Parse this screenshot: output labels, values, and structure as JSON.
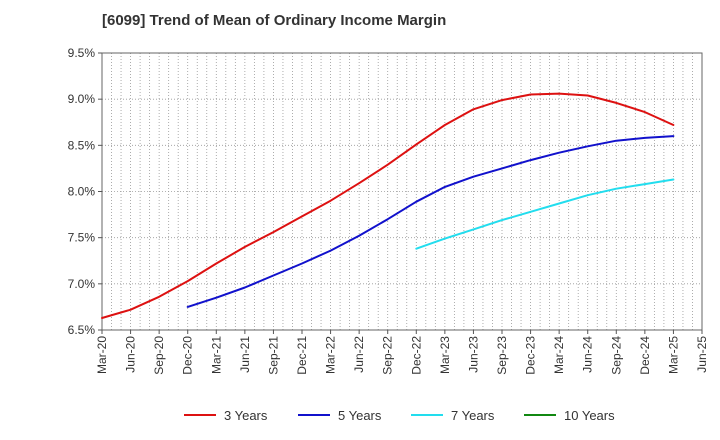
{
  "title": "[6099]  Trend of Mean of Ordinary Income Margin",
  "chart_data": {
    "type": "line",
    "title": "[6099]  Trend of Mean of Ordinary Income Margin",
    "xlabel": "",
    "ylabel": "",
    "x": [
      "Mar-20",
      "Jun-20",
      "Sep-20",
      "Dec-20",
      "Mar-21",
      "Jun-21",
      "Sep-21",
      "Dec-21",
      "Mar-22",
      "Jun-22",
      "Sep-22",
      "Dec-22",
      "Mar-23",
      "Jun-23",
      "Sep-23",
      "Dec-23",
      "Mar-24",
      "Jun-24",
      "Sep-24",
      "Dec-24",
      "Mar-25",
      "Jun-25"
    ],
    "ylim": [
      6.5,
      9.5
    ],
    "yticks": [
      6.5,
      7.0,
      7.5,
      8.0,
      8.5,
      9.0,
      9.5
    ],
    "ytick_labels": [
      "6.5%",
      "7.0%",
      "7.5%",
      "8.0%",
      "8.5%",
      "9.0%",
      "9.5%"
    ],
    "grid": true,
    "legend_position": "bottom",
    "series": [
      {
        "name": "3 Years",
        "color": "#dd1111",
        "values": [
          6.63,
          6.72,
          6.86,
          7.03,
          7.22,
          7.4,
          7.56,
          7.73,
          7.9,
          8.09,
          8.29,
          8.51,
          8.72,
          8.89,
          8.99,
          9.05,
          9.06,
          9.04,
          8.96,
          8.86,
          8.72,
          null
        ]
      },
      {
        "name": "5 Years",
        "color": "#1111cc",
        "values": [
          null,
          null,
          null,
          6.75,
          6.85,
          6.96,
          7.09,
          7.22,
          7.36,
          7.52,
          7.7,
          7.89,
          8.05,
          8.16,
          8.25,
          8.34,
          8.42,
          8.49,
          8.55,
          8.58,
          8.6,
          null
        ]
      },
      {
        "name": "7 Years",
        "color": "#22ddee",
        "values": [
          null,
          null,
          null,
          null,
          null,
          null,
          null,
          null,
          null,
          null,
          null,
          7.38,
          7.49,
          7.59,
          7.69,
          7.78,
          7.87,
          7.96,
          8.03,
          8.08,
          8.13,
          null
        ]
      },
      {
        "name": "10 Years",
        "color": "#118811",
        "values": [
          null,
          null,
          null,
          null,
          null,
          null,
          null,
          null,
          null,
          null,
          null,
          null,
          null,
          null,
          null,
          null,
          null,
          null,
          null,
          null,
          null,
          null
        ]
      }
    ]
  }
}
